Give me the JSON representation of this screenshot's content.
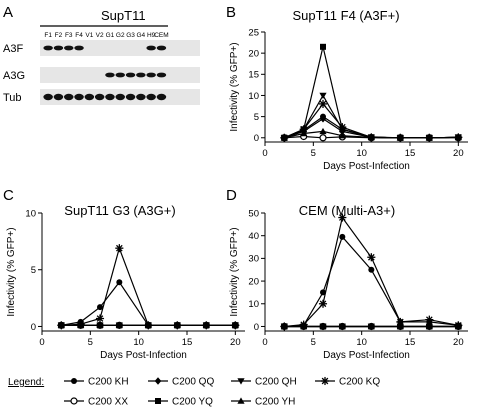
{
  "panel_letters": [
    "A",
    "B",
    "C",
    "D"
  ],
  "blot": {
    "cell_line": "SupT11",
    "lanes": [
      "F1",
      "F2",
      "F3",
      "F4",
      "V1",
      "V2",
      "G1",
      "G2",
      "G3",
      "G4",
      "H9",
      "CEM"
    ],
    "rows": [
      {
        "label": "A3F",
        "present": [
          1,
          1,
          1,
          1,
          0,
          0,
          0,
          0,
          0,
          0,
          1,
          1
        ]
      },
      {
        "label": "A3G",
        "present": [
          0,
          0,
          0,
          0,
          0,
          0,
          1,
          1,
          1,
          1,
          1,
          1
        ]
      },
      {
        "label": "Tub",
        "present": [
          1,
          1,
          1,
          1,
          1,
          1,
          1,
          1,
          1,
          1,
          1,
          1
        ]
      }
    ]
  },
  "legend": {
    "title": "Legend:",
    "entries": [
      {
        "label": "C200 KH",
        "marker": "circle-filled"
      },
      {
        "label": "C200 QQ",
        "marker": "diamond-filled"
      },
      {
        "label": "C200 QH",
        "marker": "triangle-down-filled"
      },
      {
        "label": "C200 KQ",
        "marker": "asterisk"
      },
      {
        "label": "C200 XX",
        "marker": "circle-open"
      },
      {
        "label": "C200 YQ",
        "marker": "square-filled"
      },
      {
        "label": "C200 YH",
        "marker": "triangle-up-filled"
      }
    ]
  },
  "chart_data": [
    {
      "type": "line",
      "title": "SupT11 F4 (A3F+)",
      "xlabel": "Days Post-Infection",
      "ylabel": "Infectivity (% GFP+)",
      "xlim": [
        0,
        21
      ],
      "ylim": [
        -1,
        25
      ],
      "xticks": [
        0,
        5,
        10,
        15,
        20
      ],
      "yticks": [
        0,
        5,
        10,
        15,
        20,
        25
      ],
      "x": [
        2,
        4,
        6,
        8,
        11,
        14,
        17,
        20
      ],
      "series": [
        {
          "name": "C200 KH",
          "values": [
            0,
            1.8,
            5,
            2,
            0.2,
            0,
            0,
            0.1
          ]
        },
        {
          "name": "C200 QQ",
          "values": [
            0,
            1.5,
            4.5,
            1.5,
            0.1,
            0,
            0,
            0.1
          ]
        },
        {
          "name": "C200 QH",
          "values": [
            0,
            2,
            10,
            2,
            0.1,
            0,
            0,
            0.1
          ]
        },
        {
          "name": "C200 KQ",
          "values": [
            0,
            2,
            8,
            2.5,
            0.1,
            0,
            0,
            0.1
          ]
        },
        {
          "name": "C200 XX",
          "values": [
            0,
            0.3,
            0,
            0.2,
            0,
            0,
            0,
            0
          ]
        },
        {
          "name": "C200 YQ",
          "values": [
            0,
            2,
            21.5,
            2,
            0.1,
            0,
            0,
            0.1
          ]
        },
        {
          "name": "C200 YH",
          "values": [
            0,
            1,
            1.5,
            0.5,
            0.1,
            0,
            0,
            0.1
          ]
        }
      ]
    },
    {
      "type": "line",
      "title": "SupT11 G3 (A3G+)",
      "xlabel": "Days Post-Infection",
      "ylabel": "Infectivity (% GFP+)",
      "xlim": [
        0,
        21
      ],
      "ylim": [
        -0.4,
        10
      ],
      "xticks": [
        0,
        5,
        10,
        15,
        20
      ],
      "yticks": [
        0,
        5,
        10
      ],
      "x": [
        2,
        4,
        6,
        8,
        11,
        14,
        17,
        20
      ],
      "series": [
        {
          "name": "C200 KH",
          "values": [
            0.1,
            0.4,
            1.7,
            3.9,
            0.1,
            0.1,
            0.1,
            0.1
          ]
        },
        {
          "name": "C200 QQ",
          "values": [
            0.1,
            0.1,
            0.1,
            0.1,
            0.1,
            0.1,
            0.1,
            0.1
          ]
        },
        {
          "name": "C200 QH",
          "values": [
            0.1,
            0.1,
            0.1,
            0.1,
            0.1,
            0.1,
            0.1,
            0.1
          ]
        },
        {
          "name": "C200 KQ",
          "values": [
            0.1,
            0.2,
            0.7,
            6.9,
            0.1,
            0.1,
            0.1,
            0.1
          ]
        },
        {
          "name": "C200 XX",
          "values": [
            0.1,
            0.1,
            0.1,
            0.1,
            0.1,
            0.1,
            0.1,
            0.1
          ]
        },
        {
          "name": "C200 YQ",
          "values": [
            0.1,
            0.1,
            0.1,
            0.1,
            0.1,
            0.1,
            0.1,
            0.1
          ]
        },
        {
          "name": "C200 YH",
          "values": [
            0.1,
            0.1,
            0.1,
            0.1,
            0.1,
            0.1,
            0.1,
            0.1
          ]
        }
      ]
    },
    {
      "type": "line",
      "title": "CEM (Multi-A3+)",
      "xlabel": "Days Post-Infection",
      "ylabel": "Infectivity (% GFP+)",
      "xlim": [
        0,
        21
      ],
      "ylim": [
        -2,
        50
      ],
      "xticks": [
        0,
        5,
        10,
        15,
        20
      ],
      "yticks": [
        0,
        10,
        20,
        30,
        40,
        50
      ],
      "x": [
        2,
        4,
        6,
        8,
        11,
        14,
        17,
        20
      ],
      "series": [
        {
          "name": "C200 KH",
          "values": [
            0,
            0.5,
            15,
            39.5,
            25,
            2,
            2,
            0.5
          ]
        },
        {
          "name": "C200 QQ",
          "values": [
            0,
            0,
            0,
            0,
            0,
            0,
            0,
            0
          ]
        },
        {
          "name": "C200 QH",
          "values": [
            0,
            0,
            0,
            0,
            0,
            0,
            0,
            0
          ]
        },
        {
          "name": "C200 KQ",
          "values": [
            0,
            0.8,
            10,
            48,
            30.5,
            2,
            3,
            0.5
          ]
        },
        {
          "name": "C200 XX",
          "values": [
            0,
            0,
            0,
            0,
            0,
            0,
            0,
            0
          ]
        },
        {
          "name": "C200 YQ",
          "values": [
            0,
            0,
            0,
            0,
            0,
            0,
            0,
            0
          ]
        },
        {
          "name": "C200 YH",
          "values": [
            0,
            0,
            0,
            0,
            0,
            0,
            0,
            0
          ]
        }
      ]
    }
  ]
}
